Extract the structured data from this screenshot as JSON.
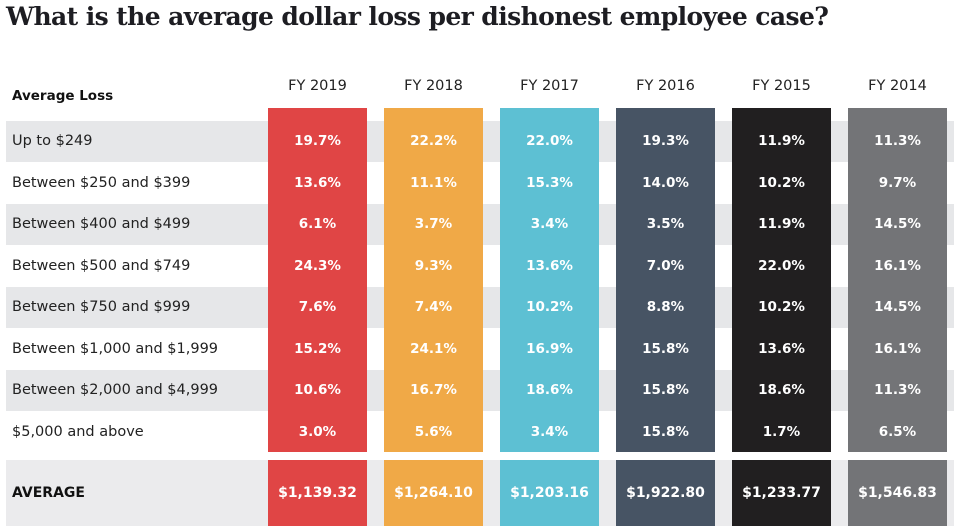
{
  "title": "What is the average dollar loss per dishonest employee case?",
  "chart_data": {
    "type": "table",
    "title": "What is the average dollar loss per dishonest employee case?",
    "row_header": "Average Loss",
    "columns": [
      {
        "label": "FY 2019",
        "color": "#e04545"
      },
      {
        "label": "FY 2018",
        "color": "#f0a947"
      },
      {
        "label": "FY 2017",
        "color": "#5dc0d3"
      },
      {
        "label": "FY 2016",
        "color": "#475464"
      },
      {
        "label": "FY 2015",
        "color": "#211f20"
      },
      {
        "label": "FY 2014",
        "color": "#737477"
      }
    ],
    "rows": [
      {
        "label": "Up to $249",
        "values": [
          "19.7%",
          "22.2%",
          "22.0%",
          "19.3%",
          "11.9%",
          "11.3%"
        ]
      },
      {
        "label": "Between $250 and $399",
        "values": [
          "13.6%",
          "11.1%",
          "15.3%",
          "14.0%",
          "10.2%",
          "9.7%"
        ]
      },
      {
        "label": "Between $400 and $499",
        "values": [
          "6.1%",
          "3.7%",
          "3.4%",
          "3.5%",
          "11.9%",
          "14.5%"
        ]
      },
      {
        "label": "Between $500 and $749",
        "values": [
          "24.3%",
          "9.3%",
          "13.6%",
          "7.0%",
          "22.0%",
          "16.1%"
        ]
      },
      {
        "label": "Between $750 and $999",
        "values": [
          "7.6%",
          "7.4%",
          "10.2%",
          "8.8%",
          "10.2%",
          "14.5%"
        ]
      },
      {
        "label": "Between $1,000 and $1,999",
        "values": [
          "15.2%",
          "24.1%",
          "16.9%",
          "15.8%",
          "13.6%",
          "16.1%"
        ]
      },
      {
        "label": "Between $2,000 and $4,999",
        "values": [
          "10.6%",
          "16.7%",
          "18.6%",
          "15.8%",
          "18.6%",
          "11.3%"
        ]
      },
      {
        "label": "$5,000 and above",
        "values": [
          "3.0%",
          "5.6%",
          "3.4%",
          "15.8%",
          "1.7%",
          "6.5%"
        ]
      }
    ],
    "average": {
      "label": "AVERAGE",
      "values": [
        "$1,139.32",
        "$1,264.10",
        "$1,203.16",
        "$1,922.80",
        "$1,233.77",
        "$1,546.83"
      ]
    }
  }
}
